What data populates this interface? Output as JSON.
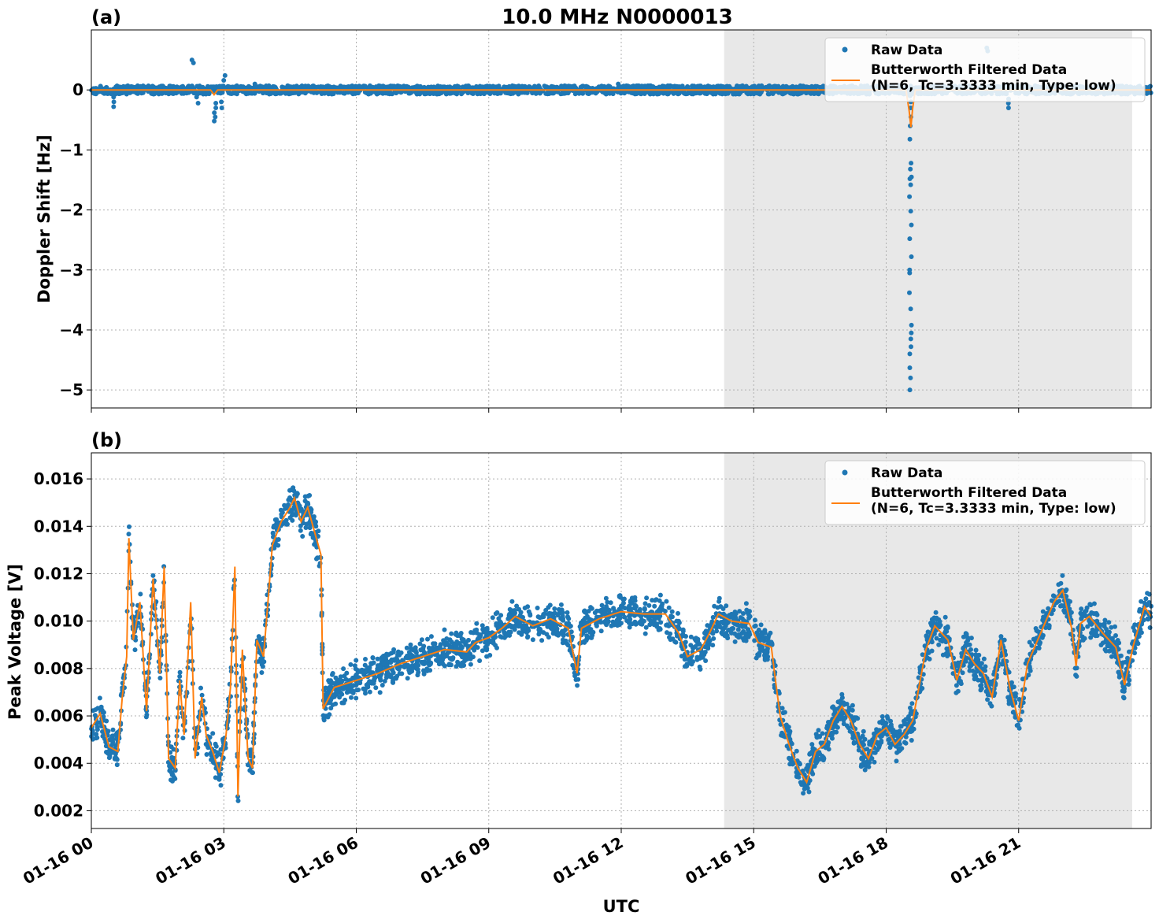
{
  "figure": {
    "title": "10.0 MHz N0000013",
    "xlabel": "UTC",
    "x_tick_labels": [
      "01-16 00",
      "01-16 03",
      "01-16 06",
      "01-16 09",
      "01-16 12",
      "01-16 15",
      "01-16 18",
      "01-16 21"
    ]
  },
  "colors": {
    "raw": "#1f77b4",
    "filtered": "#ff7f0e",
    "shade": "#e8e8e8",
    "grid": "#b0b0b0"
  },
  "chart_data": [
    {
      "type": "scatter",
      "panel_label": "(a)",
      "title": "10.0 MHz N0000013",
      "ylabel": "Doppler Shift [Hz]",
      "xlabel": "",
      "xlim_hours": [
        0,
        24
      ],
      "ylim": [
        -5.3,
        1.0
      ],
      "y_ticks": [
        0,
        -1,
        -2,
        -3,
        -4,
        -5
      ],
      "y_tick_labels": [
        "0",
        "−1",
        "−2",
        "−3",
        "−4",
        "−5"
      ],
      "grid": true,
      "legend_position": "top-right",
      "night_shading_hours": [
        14.33,
        23.57
      ],
      "series": [
        {
          "name": "Raw Data",
          "kind": "points",
          "baseline": {
            "x_range": [
              0,
              24
            ],
            "y_band": [
              -0.07,
              0.07
            ]
          },
          "excursions": [
            {
              "x": 0.5,
              "y": [
                -0.28,
                -0.2,
                -0.12
              ]
            },
            {
              "x": 2.3,
              "y": [
                0.5,
                0.45
              ]
            },
            {
              "x": 2.4,
              "y": [
                -0.22,
                -0.12
              ]
            },
            {
              "x": 2.8,
              "y": [
                -0.52,
                -0.45,
                -0.38,
                -0.3,
                -0.22
              ]
            },
            {
              "x": 2.95,
              "y": [
                -0.3,
                -0.2
              ]
            },
            {
              "x": 3.02,
              "y": [
                0.24,
                0.16
              ]
            },
            {
              "x": 3.7,
              "y": [
                0.1
              ]
            },
            {
              "x": 11.95,
              "y": [
                0.1,
                0.06
              ]
            },
            {
              "x": 18.55,
              "y": [
                -5.0,
                -4.8,
                -4.63,
                -4.4,
                -4.28,
                -4.15,
                -4.05,
                -3.92,
                -3.65,
                -3.38,
                -3.05,
                -3.0,
                -2.78,
                -2.48,
                -2.25,
                -2.02,
                -1.78,
                -1.58,
                -1.48,
                -1.45,
                -1.32,
                -1.22,
                -0.82,
                -0.6,
                -0.45,
                -0.3,
                -0.2,
                -0.1
              ]
            },
            {
              "x": 20.3,
              "y": [
                0.7,
                0.65
              ]
            },
            {
              "x": 20.75,
              "y": [
                -0.3,
                -0.22,
                -0.15
              ]
            }
          ]
        },
        {
          "name": "Butterworth Filtered Data\n(N=6, Tc=3.3333 min, Type: low)",
          "kind": "line",
          "points": [
            [
              0,
              0
            ],
            [
              2.7,
              0
            ],
            [
              2.78,
              -0.08
            ],
            [
              2.86,
              0
            ],
            [
              18.45,
              0
            ],
            [
              18.52,
              -0.35
            ],
            [
              18.56,
              -0.62
            ],
            [
              18.6,
              -0.3
            ],
            [
              18.66,
              0
            ],
            [
              24,
              0
            ]
          ]
        }
      ]
    },
    {
      "type": "scatter",
      "panel_label": "(b)",
      "title": "",
      "ylabel": "Peak Voltage [V]",
      "xlabel": "UTC",
      "xlim_hours": [
        0,
        24
      ],
      "ylim": [
        0.00125,
        0.0171
      ],
      "y_ticks": [
        0.002,
        0.004,
        0.006,
        0.008,
        0.01,
        0.012,
        0.014,
        0.016
      ],
      "y_tick_labels": [
        "0.002",
        "0.004",
        "0.006",
        "0.008",
        "0.010",
        "0.012",
        "0.014",
        "0.016"
      ],
      "grid": true,
      "legend_position": "top-right",
      "night_shading_hours": [
        14.33,
        23.57
      ],
      "series": [
        {
          "name": "Raw Data",
          "kind": "points",
          "band_spread_v": 0.0009
        },
        {
          "name": "Butterworth Filtered Data\n(N=6, Tc=3.3333 min, Type: low)",
          "kind": "line",
          "points": [
            [
              0,
              0.0055
            ],
            [
              0.2,
              0.0061
            ],
            [
              0.4,
              0.0047
            ],
            [
              0.6,
              0.0045
            ],
            [
              0.7,
              0.0068
            ],
            [
              0.8,
              0.0085
            ],
            [
              0.85,
              0.0135
            ],
            [
              0.95,
              0.0092
            ],
            [
              1.1,
              0.0108
            ],
            [
              1.25,
              0.0062
            ],
            [
              1.4,
              0.0118
            ],
            [
              1.55,
              0.0078
            ],
            [
              1.65,
              0.0123
            ],
            [
              1.75,
              0.0042
            ],
            [
              1.9,
              0.0038
            ],
            [
              2.0,
              0.0075
            ],
            [
              2.1,
              0.0052
            ],
            [
              2.25,
              0.0108
            ],
            [
              2.35,
              0.0042
            ],
            [
              2.5,
              0.0068
            ],
            [
              2.6,
              0.0052
            ],
            [
              2.75,
              0.0045
            ],
            [
              2.9,
              0.0036
            ],
            [
              3.05,
              0.0052
            ],
            [
              3.15,
              0.0072
            ],
            [
              3.25,
              0.0123
            ],
            [
              3.32,
              0.0026
            ],
            [
              3.42,
              0.0088
            ],
            [
              3.55,
              0.0042
            ],
            [
              3.65,
              0.0038
            ],
            [
              3.75,
              0.0092
            ],
            [
              3.9,
              0.0085
            ],
            [
              4.0,
              0.0108
            ],
            [
              4.1,
              0.0132
            ],
            [
              4.3,
              0.0142
            ],
            [
              4.5,
              0.0148
            ],
            [
              4.6,
              0.0152
            ],
            [
              4.75,
              0.0142
            ],
            [
              4.9,
              0.0148
            ],
            [
              5.05,
              0.0138
            ],
            [
              5.2,
              0.0128
            ],
            [
              5.25,
              0.0063
            ],
            [
              5.5,
              0.0072
            ],
            [
              6.0,
              0.0075
            ],
            [
              6.5,
              0.0078
            ],
            [
              7.0,
              0.0082
            ],
            [
              7.5,
              0.0085
            ],
            [
              8.0,
              0.0088
            ],
            [
              8.5,
              0.0087
            ],
            [
              8.7,
              0.0091
            ],
            [
              9.0,
              0.0093
            ],
            [
              9.3,
              0.0097
            ],
            [
              9.6,
              0.0102
            ],
            [
              10.0,
              0.0098
            ],
            [
              10.4,
              0.0101
            ],
            [
              10.8,
              0.0097
            ],
            [
              11.0,
              0.0078
            ],
            [
              11.1,
              0.0097
            ],
            [
              11.5,
              0.0101
            ],
            [
              12.0,
              0.0104
            ],
            [
              12.5,
              0.0103
            ],
            [
              13.0,
              0.0103
            ],
            [
              13.3,
              0.0095
            ],
            [
              13.5,
              0.0085
            ],
            [
              13.8,
              0.0088
            ],
            [
              14.0,
              0.0095
            ],
            [
              14.2,
              0.0103
            ],
            [
              14.5,
              0.01
            ],
            [
              14.9,
              0.0099
            ],
            [
              15.1,
              0.0091
            ],
            [
              15.4,
              0.0089
            ],
            [
              15.5,
              0.0074
            ],
            [
              15.6,
              0.006
            ],
            [
              15.8,
              0.0048
            ],
            [
              16.0,
              0.0038
            ],
            [
              16.2,
              0.0032
            ],
            [
              16.4,
              0.0045
            ],
            [
              16.6,
              0.0048
            ],
            [
              16.8,
              0.0058
            ],
            [
              17.0,
              0.0064
            ],
            [
              17.2,
              0.0058
            ],
            [
              17.4,
              0.0048
            ],
            [
              17.6,
              0.0042
            ],
            [
              17.8,
              0.0052
            ],
            [
              18.0,
              0.0055
            ],
            [
              18.2,
              0.0048
            ],
            [
              18.4,
              0.0052
            ],
            [
              18.6,
              0.0058
            ],
            [
              18.9,
              0.0088
            ],
            [
              19.1,
              0.0098
            ],
            [
              19.4,
              0.0092
            ],
            [
              19.6,
              0.0075
            ],
            [
              19.8,
              0.0088
            ],
            [
              20.0,
              0.0082
            ],
            [
              20.2,
              0.0078
            ],
            [
              20.4,
              0.0068
            ],
            [
              20.6,
              0.0092
            ],
            [
              20.8,
              0.0072
            ],
            [
              21.0,
              0.0058
            ],
            [
              21.2,
              0.0082
            ],
            [
              21.5,
              0.0095
            ],
            [
              21.8,
              0.0108
            ],
            [
              22.0,
              0.0113
            ],
            [
              22.2,
              0.0097
            ],
            [
              22.3,
              0.0081
            ],
            [
              22.4,
              0.0099
            ],
            [
              22.6,
              0.0102
            ],
            [
              22.9,
              0.0095
            ],
            [
              23.2,
              0.0089
            ],
            [
              23.4,
              0.0073
            ],
            [
              23.6,
              0.009
            ],
            [
              23.85,
              0.0106
            ],
            [
              24.0,
              0.0102
            ]
          ]
        }
      ]
    }
  ]
}
